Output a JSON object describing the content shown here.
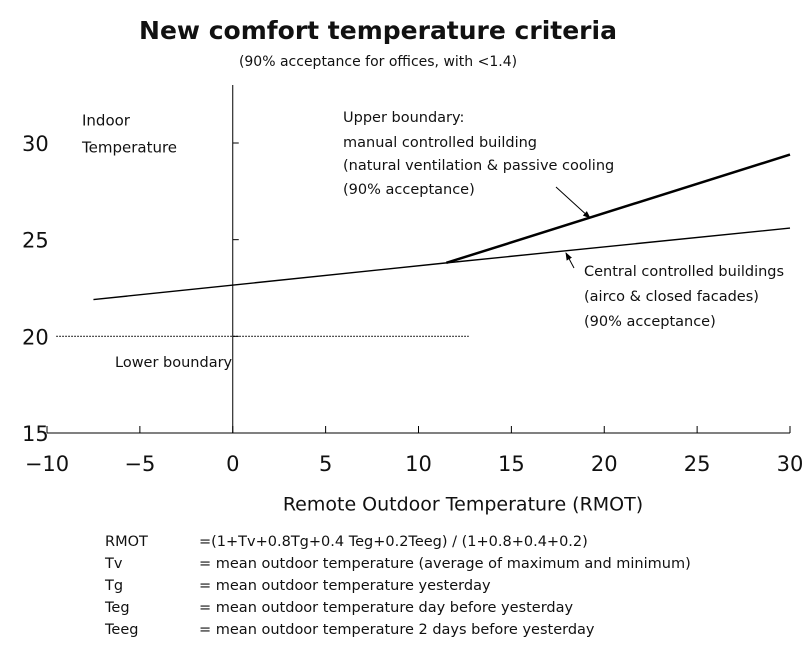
{
  "chart_data": {
    "type": "line",
    "title": "New comfort temperature criteria",
    "subtitle": "(90% acceptance for offices, with <1.4)",
    "y_label": [
      "Indoor",
      "Temperature"
    ],
    "x_label": "Remote Outdoor Temperature (RMOT)",
    "xlim": [
      -10,
      30
    ],
    "ylim": [
      15,
      33
    ],
    "xticks": [
      {
        "value": -10,
        "label": "−10"
      },
      {
        "value": -5,
        "label": "−5"
      },
      0,
      5,
      10,
      15,
      20,
      25,
      30
    ],
    "yticks": [
      15,
      20,
      25,
      30
    ],
    "series": [
      {
        "x": [
          -7.5,
          11.5,
          30
        ],
        "values": [
          21.9,
          23.8,
          25.6
        ],
        "color": "#000000",
        "style": "thin"
      },
      {
        "x": [
          11.5,
          30
        ],
        "values": [
          23.8,
          29.4
        ],
        "color": "#000000",
        "style": "bold"
      },
      {
        "x": [
          -9.5,
          12.7
        ],
        "values": [
          20,
          20
        ],
        "color": "#000000",
        "style": "dotted"
      }
    ],
    "annotations": {
      "upper": [
        "Upper boundary:",
        "manual controlled building",
        "(natural ventilation & passive cooling",
        "(90% acceptance)"
      ],
      "central": [
        "Central controlled buildings",
        "(airco & closed facades)",
        "(90% acceptance)"
      ],
      "lower": "Lower boundary"
    },
    "definitions": [
      [
        "RMOT",
        "=(1+Tv+0.8Tg+0.4 Teg+0.2Teeg) / (1+0.8+0.4+0.2)"
      ],
      [
        "Tv",
        "= mean outdoor temperature (average of maximum and minimum)"
      ],
      [
        "Tg",
        "= mean outdoor temperature yesterday"
      ],
      [
        "Teg",
        "= mean outdoor temperature day before yesterday"
      ],
      [
        "Teeg",
        "= mean outdoor temperature 2 days before yesterday"
      ]
    ]
  }
}
